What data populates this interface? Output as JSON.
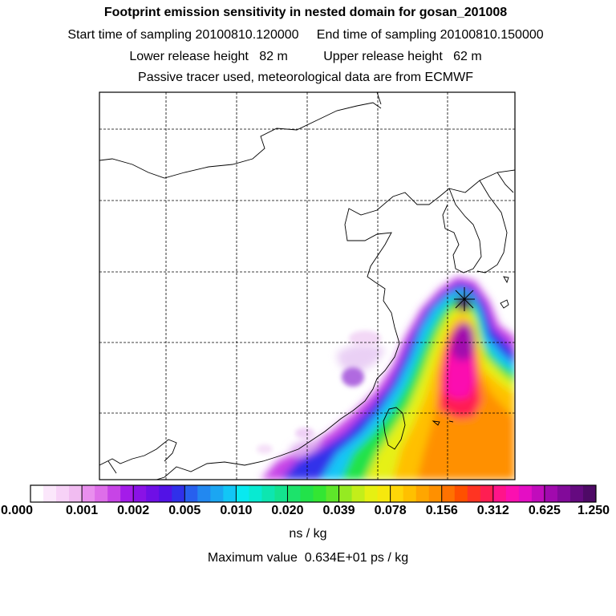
{
  "header": {
    "title": "Footprint emission sensitivity in nested domain for gosan_201008",
    "sampling_line": "Start time of sampling 20100810.120000     End time of sampling 20100810.150000",
    "release_line": "Lower release height   82 m          Upper release height   62 m",
    "tracer_line": "Passive tracer used, meteorological data are from ECMWF"
  },
  "colorbar": {
    "tick_labels": [
      "0.000",
      "0.001",
      "0.002",
      "0.005",
      "0.010",
      "0.020",
      "0.039",
      "0.078",
      "0.156",
      "0.312",
      "0.625",
      "1.250"
    ],
    "unit": "ns / kg",
    "colors": [
      "#ffffff",
      "#fbe7fb",
      "#f7d2f7",
      "#f1bcf1",
      "#e98fee",
      "#de6ee9",
      "#c744e6",
      "#a41ce9",
      "#8a12e6",
      "#6f0fe6",
      "#5212e6",
      "#3030ea",
      "#2760ee",
      "#2288f0",
      "#1ba6f2",
      "#12c6f6",
      "#08e9f0",
      "#08ead2",
      "#0de6b0",
      "#13e38f",
      "#1ce36b",
      "#22e24a",
      "#33e633",
      "#5ee62a",
      "#95ea22",
      "#c3ee1a",
      "#e6f012",
      "#f6e80d",
      "#fed608",
      "#ffc000",
      "#ffa600",
      "#ff9000",
      "#ff7200",
      "#ff5000",
      "#ff3422",
      "#ff1e52",
      "#ff148a",
      "#fb10b0",
      "#e40ec4",
      "#c10cbc",
      "#a10aae",
      "#820a9a",
      "#650a80",
      "#4e0a66"
    ]
  },
  "max_value_text": "Maximum value  0.634E+01 ps / kg"
}
